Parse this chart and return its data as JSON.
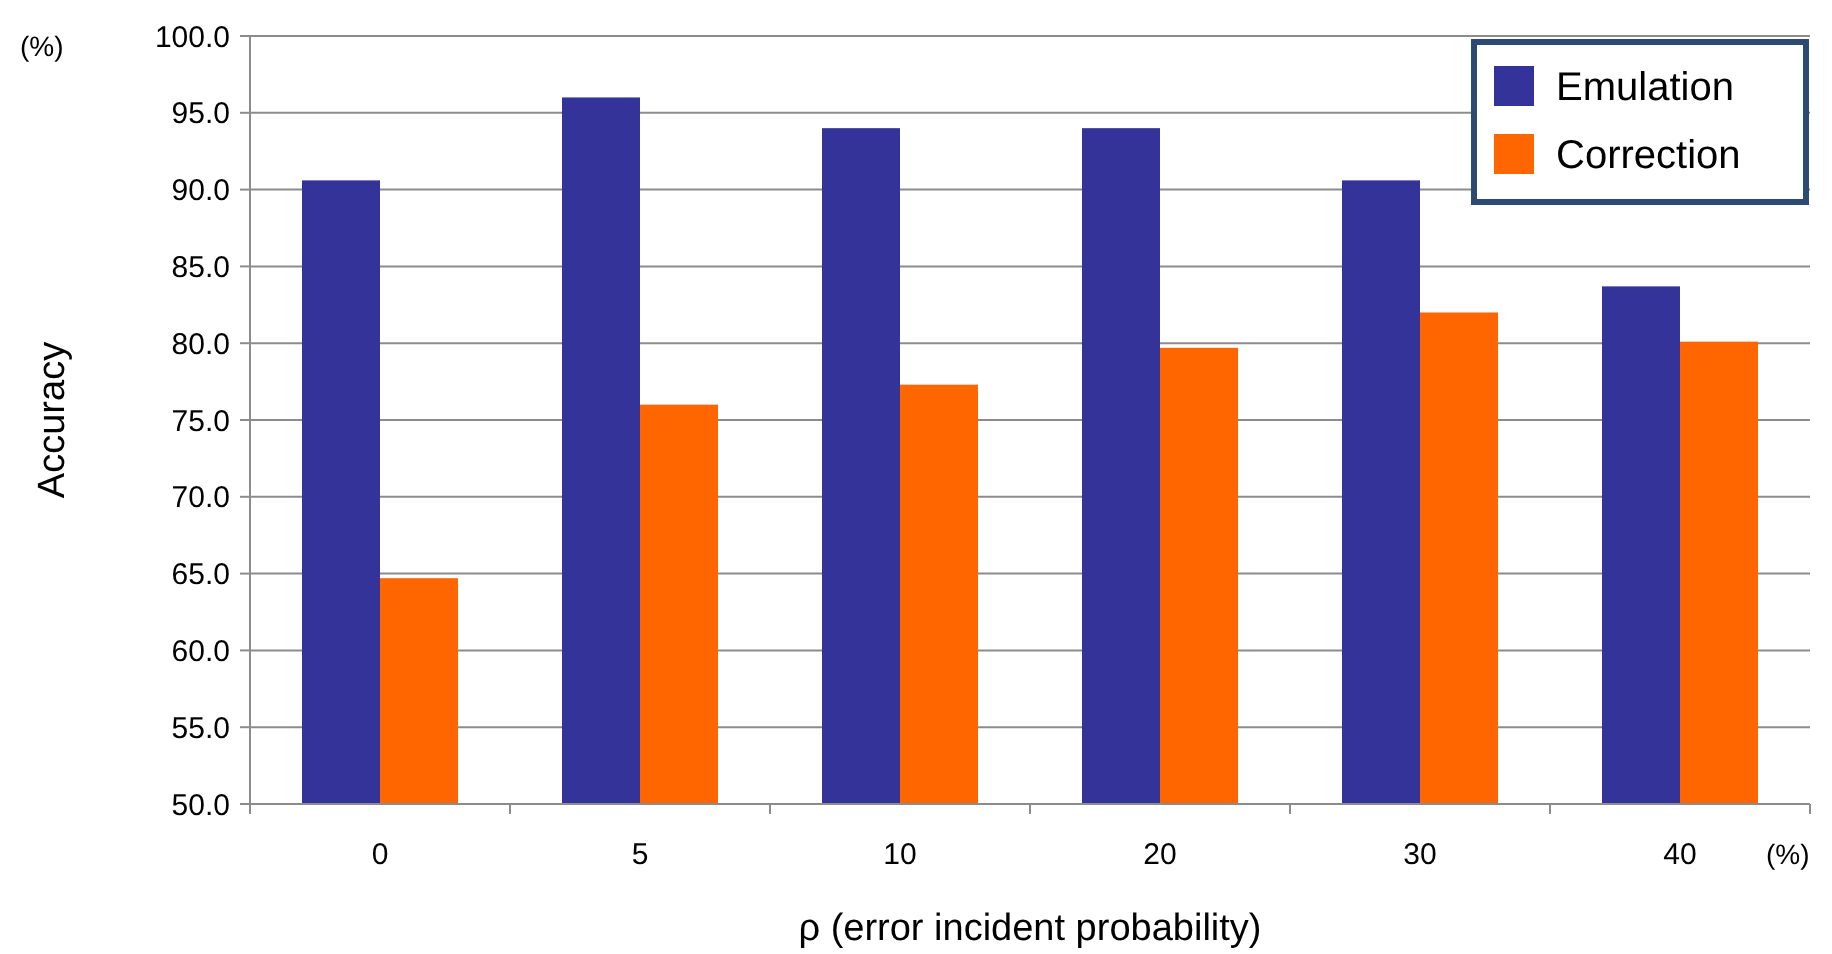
{
  "chart_data": {
    "type": "bar",
    "xlabel": "ρ  (error incident probability)",
    "ylabel": "Accuracy",
    "categories": [
      "0",
      "5",
      "10",
      "20",
      "30",
      "40"
    ],
    "series": [
      {
        "name": "Emulation",
        "color": "#333399",
        "values": [
          90.6,
          96.0,
          94.0,
          94.0,
          90.6,
          83.7
        ]
      },
      {
        "name": "Correction",
        "color": "#ff6600",
        "values": [
          64.7,
          76.0,
          77.3,
          79.7,
          82.0,
          80.1
        ]
      }
    ],
    "ylim": [
      50,
      100
    ],
    "yticks": [
      {
        "value": 50,
        "label": "50.0"
      },
      {
        "value": 55,
        "label": "55.0"
      },
      {
        "value": 60,
        "label": "60.0"
      },
      {
        "value": 65,
        "label": "65.0"
      },
      {
        "value": 70,
        "label": "70.0"
      },
      {
        "value": 75,
        "label": "75.0"
      },
      {
        "value": 80,
        "label": "80.0"
      },
      {
        "value": 85,
        "label": "85.0"
      },
      {
        "value": 90,
        "label": "90.0"
      },
      {
        "value": 95,
        "label": "95.0"
      },
      {
        "value": 100,
        "label": "100.0"
      }
    ],
    "grid": "y",
    "legend": "top right",
    "annotations": [
      "(%)",
      "(%)"
    ]
  }
}
